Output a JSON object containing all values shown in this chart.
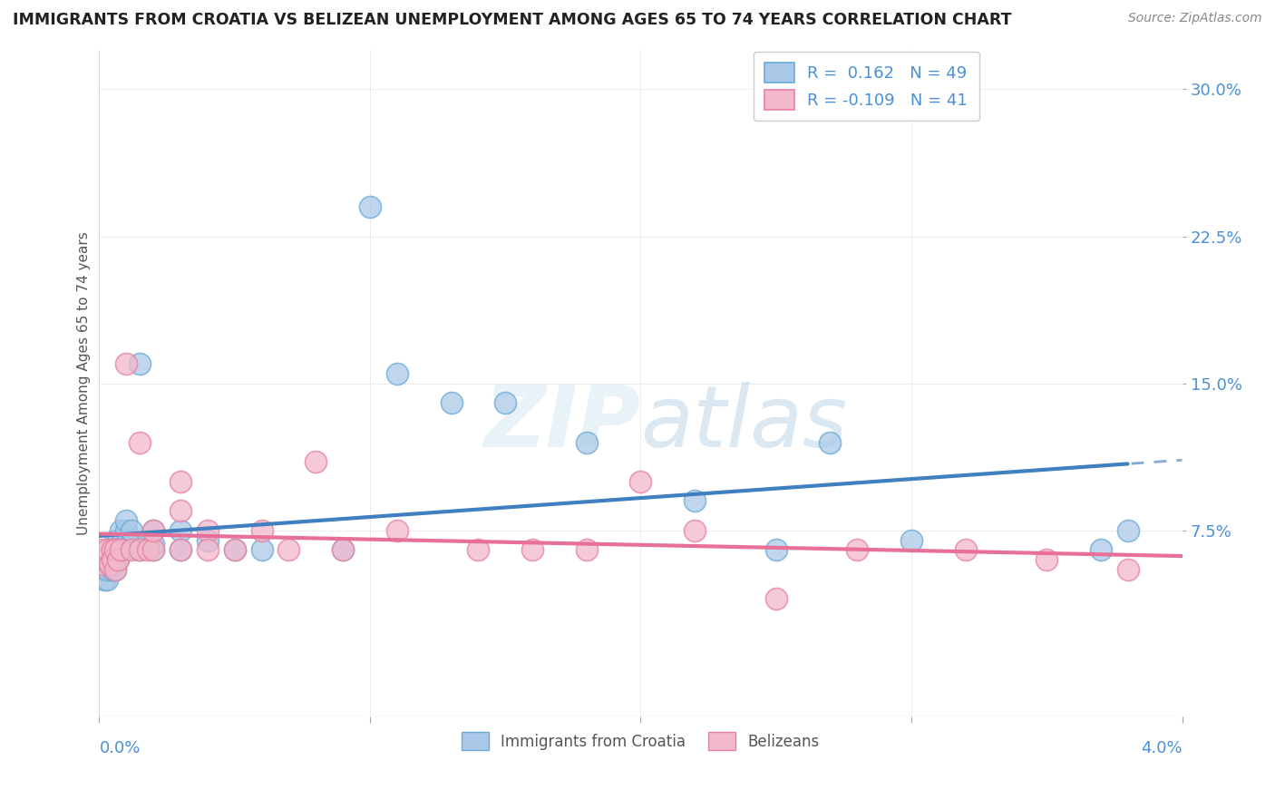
{
  "title": "IMMIGRANTS FROM CROATIA VS BELIZEAN UNEMPLOYMENT AMONG AGES 65 TO 74 YEARS CORRELATION CHART",
  "source_text": "Source: ZipAtlas.com",
  "ylabel": "Unemployment Among Ages 65 to 74 years",
  "xmin": 0.0,
  "xmax": 0.04,
  "ymin": -0.02,
  "ymax": 0.32,
  "yticks": [
    0.075,
    0.15,
    0.225,
    0.3
  ],
  "ytick_labels": [
    "7.5%",
    "15.0%",
    "22.5%",
    "30.0%"
  ],
  "xtick_left_label": "0.0%",
  "xtick_right_label": "4.0%",
  "blue_color": "#aac9e8",
  "blue_edge_color": "#6aaad4",
  "pink_color": "#f2b8cb",
  "pink_edge_color": "#e8809e",
  "trend_blue": "#4080c0",
  "trend_pink": "#e87098",
  "r_blue": 0.162,
  "n_blue": 49,
  "r_pink": -0.109,
  "n_pink": 41,
  "blue_x": [
    5e-05,
    0.0001,
    0.0001,
    0.0002,
    0.0002,
    0.0003,
    0.0003,
    0.0003,
    0.0004,
    0.0004,
    0.0005,
    0.0005,
    0.0005,
    0.0006,
    0.0006,
    0.0006,
    0.0007,
    0.0007,
    0.0007,
    0.0008,
    0.0008,
    0.001,
    0.001,
    0.001,
    0.0012,
    0.0012,
    0.0015,
    0.0015,
    0.0018,
    0.002,
    0.002,
    0.002,
    0.003,
    0.003,
    0.004,
    0.005,
    0.006,
    0.009,
    0.01,
    0.011,
    0.013,
    0.015,
    0.018,
    0.022,
    0.025,
    0.027,
    0.03,
    0.037,
    0.038
  ],
  "blue_y": [
    0.058,
    0.055,
    0.062,
    0.05,
    0.06,
    0.05,
    0.055,
    0.065,
    0.058,
    0.062,
    0.06,
    0.065,
    0.055,
    0.06,
    0.07,
    0.055,
    0.065,
    0.07,
    0.06,
    0.065,
    0.075,
    0.065,
    0.075,
    0.08,
    0.07,
    0.075,
    0.065,
    0.16,
    0.07,
    0.065,
    0.075,
    0.068,
    0.075,
    0.065,
    0.07,
    0.065,
    0.065,
    0.065,
    0.24,
    0.155,
    0.14,
    0.14,
    0.12,
    0.09,
    0.065,
    0.12,
    0.07,
    0.065,
    0.075
  ],
  "pink_x": [
    5e-05,
    0.0001,
    0.0001,
    0.0002,
    0.0003,
    0.0003,
    0.0004,
    0.0005,
    0.0005,
    0.0006,
    0.0006,
    0.0007,
    0.0008,
    0.001,
    0.0012,
    0.0015,
    0.0015,
    0.0018,
    0.002,
    0.002,
    0.003,
    0.003,
    0.003,
    0.004,
    0.004,
    0.005,
    0.006,
    0.007,
    0.008,
    0.009,
    0.011,
    0.014,
    0.016,
    0.018,
    0.02,
    0.022,
    0.025,
    0.028,
    0.032,
    0.035,
    0.038
  ],
  "pink_y": [
    0.06,
    0.058,
    0.065,
    0.06,
    0.06,
    0.065,
    0.058,
    0.065,
    0.06,
    0.065,
    0.055,
    0.06,
    0.065,
    0.16,
    0.065,
    0.065,
    0.12,
    0.065,
    0.065,
    0.075,
    0.085,
    0.1,
    0.065,
    0.075,
    0.065,
    0.065,
    0.075,
    0.065,
    0.11,
    0.065,
    0.075,
    0.065,
    0.065,
    0.065,
    0.1,
    0.075,
    0.04,
    0.065,
    0.065,
    0.06,
    0.055
  ]
}
